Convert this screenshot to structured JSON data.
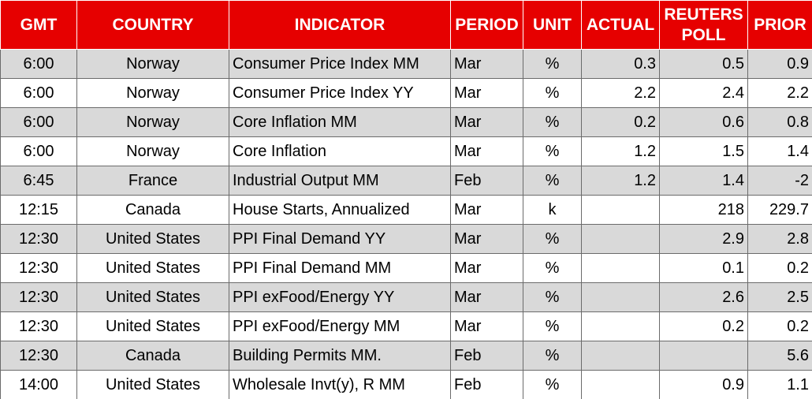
{
  "table": {
    "header": [
      "GMT",
      "COUNTRY",
      "INDICATOR",
      "PERIOD",
      "UNIT",
      "ACTUAL",
      "REUTERS POLL",
      "PRIOR"
    ],
    "rows": [
      [
        "6:00",
        "Norway",
        "Consumer Price Index MM",
        "Mar",
        "%",
        "0.3",
        "0.5",
        "0.9"
      ],
      [
        "6:00",
        "Norway",
        "Consumer Price Index YY",
        "Mar",
        "%",
        "2.2",
        "2.4",
        "2.2"
      ],
      [
        "6:00",
        "Norway",
        "Core Inflation MM",
        "Mar",
        "%",
        "0.2",
        "0.6",
        "0.8"
      ],
      [
        "6:00",
        "Norway",
        "Core Inflation",
        "Mar",
        "%",
        "1.2",
        "1.5",
        "1.4"
      ],
      [
        "6:45",
        "France",
        "Industrial Output MM",
        "Feb",
        "%",
        "1.2",
        "1.4",
        "-2"
      ],
      [
        "12:15",
        "Canada",
        "House Starts, Annualized",
        "Mar",
        "k",
        null,
        "218",
        "229.7"
      ],
      [
        "12:30",
        "United States",
        "PPI Final Demand YY",
        "Mar",
        "%",
        null,
        "2.9",
        "2.8"
      ],
      [
        "12:30",
        "United States",
        "PPI Final Demand MM",
        "Mar",
        "%",
        null,
        "0.1",
        "0.2"
      ],
      [
        "12:30",
        "United States",
        "PPI exFood/Energy YY",
        "Mar",
        "%",
        null,
        "2.6",
        "2.5"
      ],
      [
        "12:30",
        "United States",
        "PPI exFood/Energy MM",
        "Mar",
        "%",
        null,
        "0.2",
        "0.2"
      ],
      [
        "12:30",
        "Canada",
        "Building Permits MM.",
        "Feb",
        "%",
        null,
        null,
        "5.6"
      ],
      [
        "14:00",
        "United States",
        "Wholesale Invt(y), R MM",
        "Feb",
        "%",
        null,
        "0.9",
        "1.1"
      ]
    ]
  }
}
